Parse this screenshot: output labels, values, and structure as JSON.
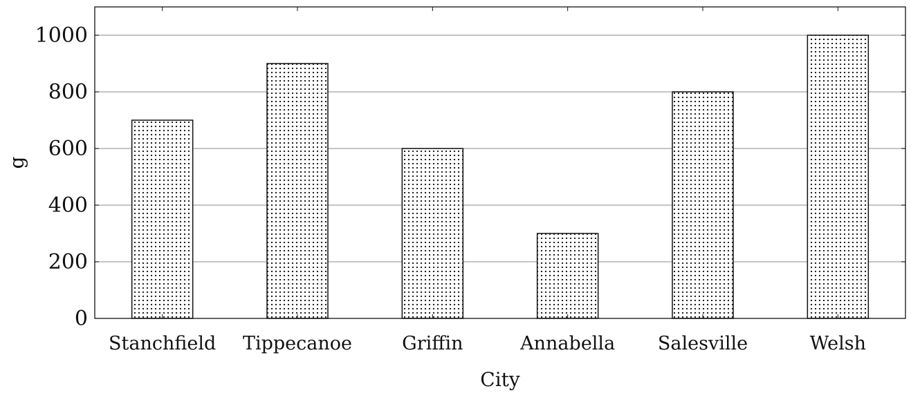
{
  "chart_data": {
    "type": "bar",
    "categories": [
      "Stanchfield",
      "Tippecanoe",
      "Griffin",
      "Annabella",
      "Salesville",
      "Welsh"
    ],
    "values": [
      700,
      900,
      600,
      300,
      800,
      1000
    ],
    "xlabel": "City",
    "ylabel": "g",
    "ylim": [
      0,
      1100
    ],
    "yticks": [
      0,
      200,
      400,
      600,
      800,
      1000
    ],
    "grid": "y-major",
    "bar_pattern": "dots",
    "bar_color": "#111111"
  }
}
